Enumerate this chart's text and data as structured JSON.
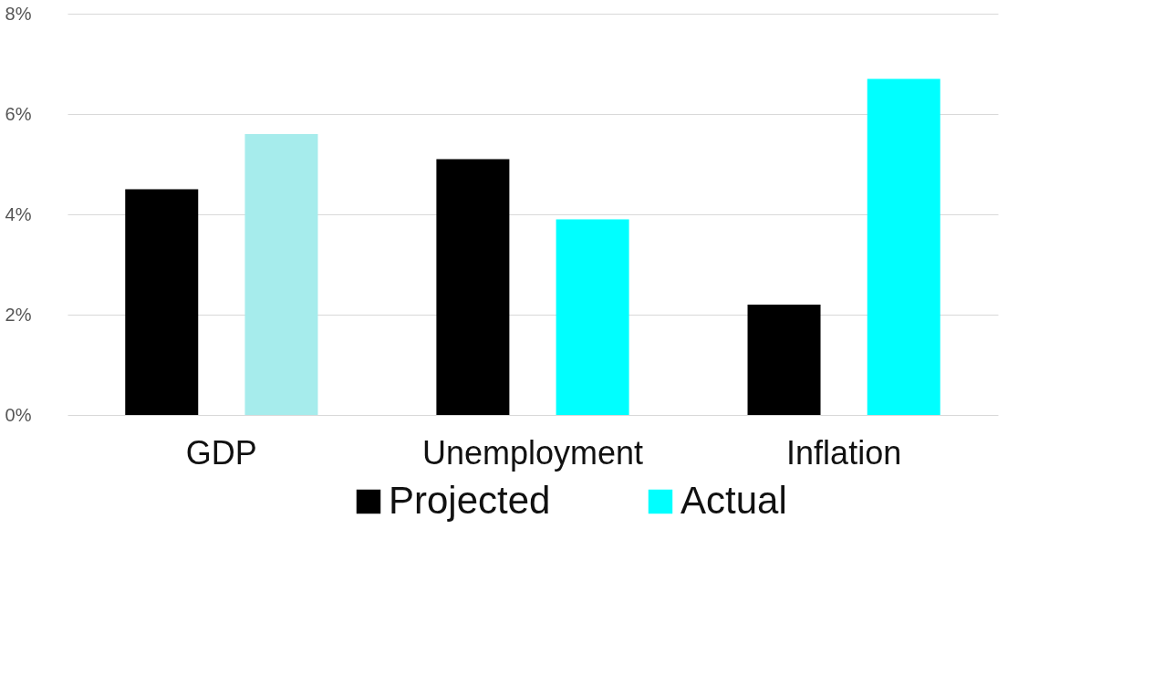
{
  "chart_data": {
    "type": "bar",
    "categories": [
      "GDP",
      "Unemployment",
      "Inflation"
    ],
    "series": [
      {
        "name": "Projected",
        "color": "#000000",
        "values": [
          4.5,
          5.1,
          2.2
        ]
      },
      {
        "name": "Actual",
        "color": "#00ffff",
        "colors": [
          "#a6ecec",
          "#00ffff",
          "#00ffff"
        ],
        "values": [
          5.6,
          3.9,
          6.7
        ]
      }
    ],
    "ylim": [
      0,
      8
    ],
    "yticks": [
      {
        "value": 0,
        "label": "0%"
      },
      {
        "value": 2,
        "label": "2%"
      },
      {
        "value": 4,
        "label": "4%"
      },
      {
        "value": 6,
        "label": "6%"
      },
      {
        "value": 8,
        "label": "8%"
      }
    ],
    "grid": "y",
    "legend": "bottom"
  }
}
